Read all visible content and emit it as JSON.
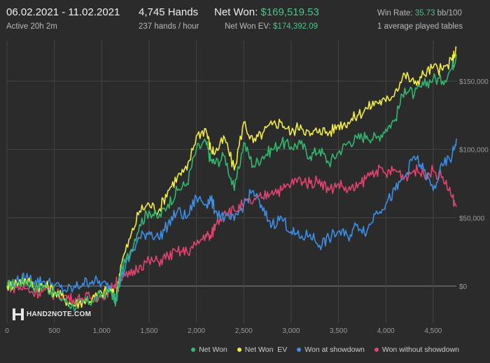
{
  "header": {
    "date_range": "06.02.2021 - 11.02.2021",
    "active": "Active 20h 2m",
    "hands": "4,745 Hands",
    "hands_rate": "237 hands / hour",
    "net_won_label": "Net Won: ",
    "net_won_value": "$169,519.53",
    "ev_label": "Net Won  EV: ",
    "ev_value": "$174,392.09",
    "win_rate_label": "Win Rate: ",
    "win_rate_value": "35.73",
    "win_rate_unit": " bb/100",
    "tables": "1 average played tables"
  },
  "watermark": {
    "text": "HAND2NOTE.COM"
  },
  "colors": {
    "background": "#2b2b2b",
    "grid": "#444444",
    "zero_line": "#8a8a8a",
    "net_won": "#2fb86e",
    "net_won_ev": "#f2ee3a",
    "won_showdown": "#3a8fe6",
    "won_no_showdown": "#e0446f",
    "accent_green": "#4cc38a"
  },
  "chart_data": {
    "type": "line",
    "title": "",
    "xlabel": "",
    "ylabel": "",
    "xlim": [
      0,
      4745
    ],
    "ylim": [
      -20000,
      180000
    ],
    "x_ticks": [
      "0",
      "500",
      "1,000",
      "1,500",
      "2,000",
      "2,500",
      "3,000",
      "3,500",
      "4,000",
      "4,500"
    ],
    "y_ticks": [
      "$0",
      "$50,000",
      "$100,000",
      "$150,000"
    ],
    "grid": true,
    "legend_position": "bottom-right",
    "x": [
      0,
      100,
      200,
      300,
      400,
      500,
      600,
      700,
      800,
      900,
      1000,
      1100,
      1150,
      1200,
      1300,
      1400,
      1500,
      1600,
      1700,
      1800,
      1900,
      2000,
      2100,
      2150,
      2200,
      2300,
      2400,
      2500,
      2600,
      2700,
      2800,
      2900,
      3000,
      3100,
      3200,
      3300,
      3400,
      3500,
      3600,
      3700,
      3800,
      3900,
      4000,
      4100,
      4200,
      4300,
      4400,
      4500,
      4600,
      4700,
      4745
    ],
    "series": [
      {
        "name": "Net Won",
        "values": [
          0,
          2000,
          4000,
          -1000,
          0,
          -5000,
          -10000,
          -15000,
          -12000,
          -11000,
          -6000,
          -4000,
          -12000,
          10000,
          25000,
          45000,
          55000,
          50000,
          60000,
          70000,
          75000,
          100000,
          105000,
          92000,
          90000,
          95000,
          70000,
          105000,
          88000,
          95000,
          100000,
          105000,
          102000,
          104000,
          95000,
          100000,
          90000,
          98000,
          105000,
          108000,
          110000,
          108000,
          115000,
          122000,
          145000,
          140000,
          147000,
          152000,
          150000,
          160000,
          169520
        ]
      },
      {
        "name": "Net Won  EV",
        "values": [
          0,
          2500,
          4500,
          -500,
          500,
          -4000,
          -9000,
          -14000,
          -11000,
          -9500,
          -5000,
          -3000,
          -10000,
          15000,
          35000,
          55000,
          60000,
          55000,
          70000,
          80000,
          85000,
          110000,
          115000,
          100000,
          98000,
          108000,
          85000,
          120000,
          105000,
          112000,
          118000,
          120000,
          112000,
          118000,
          110000,
          115000,
          112000,
          118000,
          120000,
          125000,
          130000,
          135000,
          135000,
          143000,
          155000,
          148000,
          155000,
          160000,
          158000,
          165000,
          174392
        ]
      },
      {
        "name": "Won at showdown",
        "values": [
          0,
          3000,
          6000,
          4000,
          3000,
          1000,
          -3000,
          -2000,
          2000,
          4000,
          2000,
          -2000,
          -10000,
          5000,
          22000,
          35000,
          40000,
          35000,
          45000,
          55000,
          50000,
          65000,
          60000,
          64000,
          55000,
          50000,
          48000,
          60000,
          70000,
          55000,
          45000,
          50000,
          40000,
          35000,
          38000,
          30000,
          35000,
          40000,
          36000,
          45000,
          40000,
          55000,
          60000,
          70000,
          80000,
          95000,
          85000,
          70000,
          88000,
          95000,
          108000
        ]
      },
      {
        "name": "Won without showdown",
        "values": [
          0,
          -1000,
          -2000,
          -5000,
          -3000,
          -6000,
          -7000,
          -10000,
          -9000,
          -8000,
          -7000,
          -2000,
          2000,
          5000,
          8000,
          15000,
          18000,
          18000,
          22000,
          25000,
          25000,
          30000,
          38000,
          35000,
          45000,
          55000,
          55000,
          60000,
          62000,
          65000,
          70000,
          70000,
          75000,
          78000,
          75000,
          78000,
          70000,
          75000,
          70000,
          72000,
          80000,
          85000,
          82000,
          85000,
          80000,
          85000,
          82000,
          84000,
          80000,
          65000,
          58000
        ]
      }
    ]
  }
}
